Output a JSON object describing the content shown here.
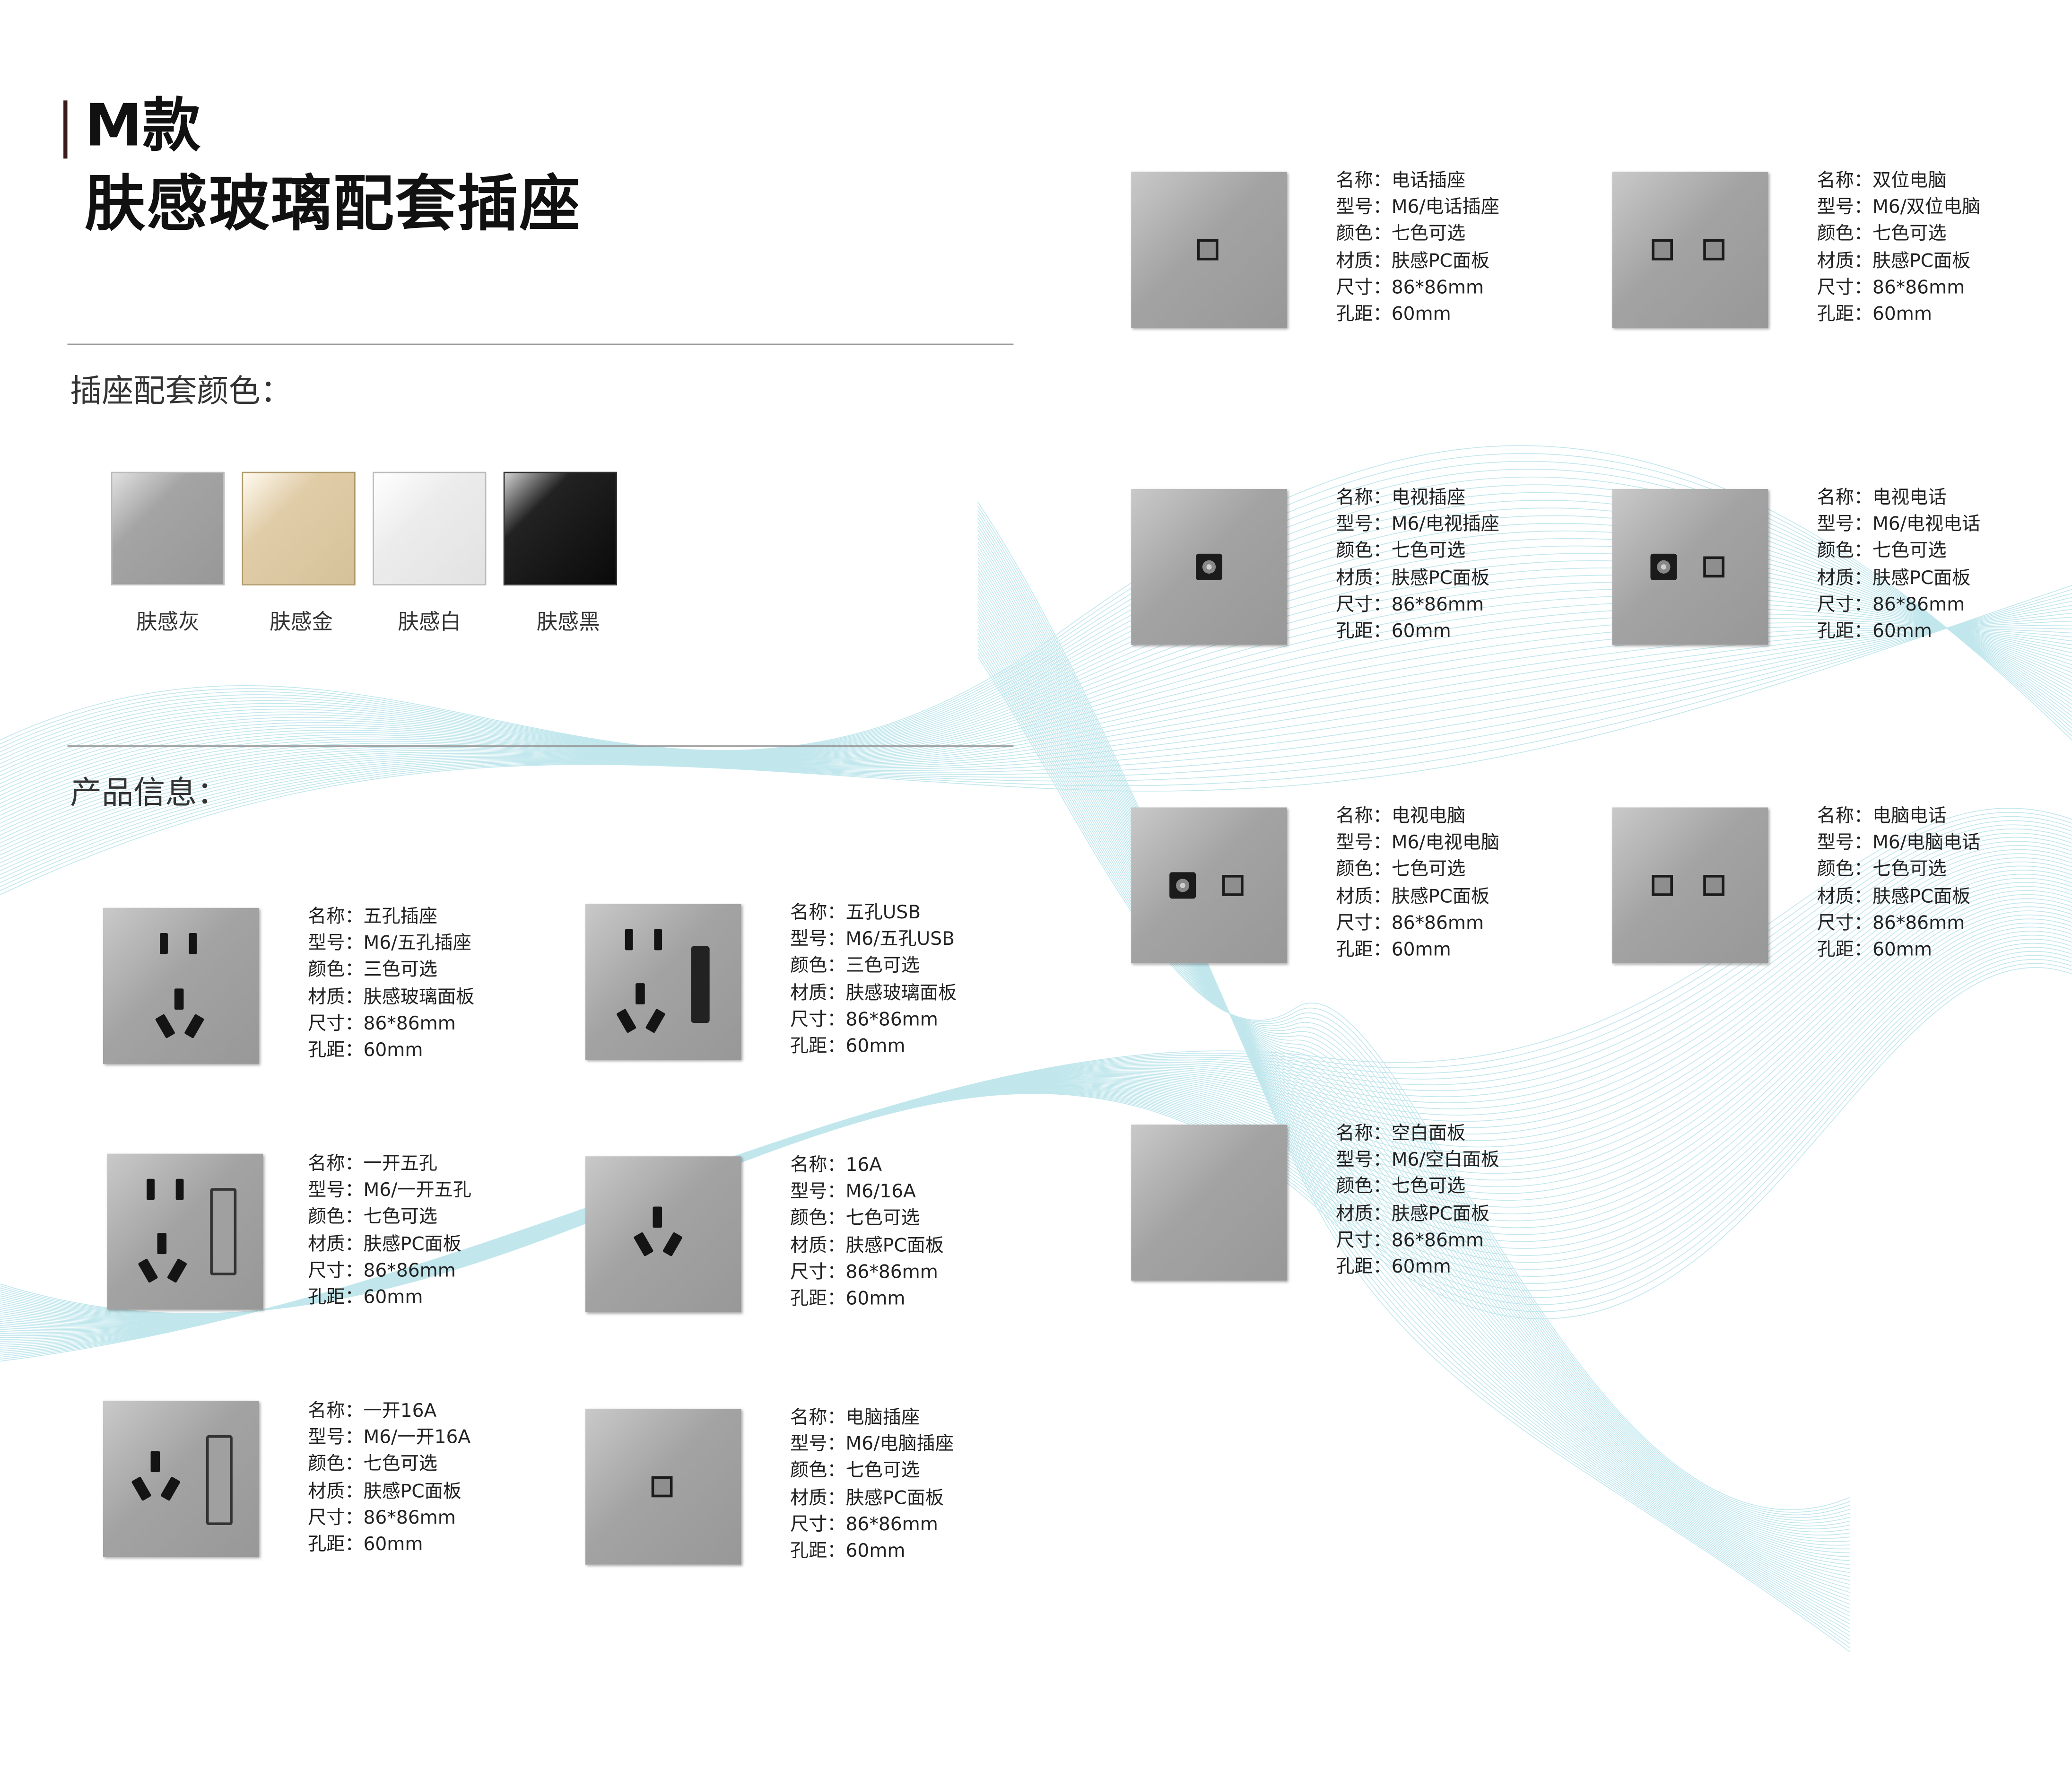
{
  "header": {
    "line1": "M款",
    "line2": "肤感玻璃配套插座"
  },
  "colors_section": {
    "heading": "插座配套颜色：",
    "swatches": [
      {
        "label": "肤感灰",
        "color": "#9a9a9a"
      },
      {
        "label": "肤感金",
        "color": "#d8c49c"
      },
      {
        "label": "肤感白",
        "color": "#e4e4e4"
      },
      {
        "label": "肤感黑",
        "color": "#0d0d0d"
      }
    ]
  },
  "products_section": {
    "heading": "产品信息："
  },
  "field_labels": {
    "name": "名称：",
    "model": "型号：",
    "color": "颜色：",
    "material": "材质：",
    "size": "尺寸：",
    "pitch": "孔距："
  },
  "products": [
    {
      "icon": "five-hole",
      "name": "五孔插座",
      "model": "M6/五孔插座",
      "color": "三色可选",
      "material": "肤感玻璃面板",
      "size": "86*86mm",
      "pitch": "60mm"
    },
    {
      "icon": "five-hole-usb",
      "name": "五孔USB",
      "model": "M6/五孔USB",
      "color": "三色可选",
      "material": "肤感玻璃面板",
      "size": "86*86mm",
      "pitch": "60mm"
    },
    {
      "icon": "switch-five-hole",
      "name": "一开五孔",
      "model": "M6/一开五孔",
      "color": "七色可选",
      "material": "肤感PC面板",
      "size": "86*86mm",
      "pitch": "60mm"
    },
    {
      "icon": "three-hole-16a",
      "name": "16A",
      "model": "M6/16A",
      "color": "七色可选",
      "material": "肤感PC面板",
      "size": "86*86mm",
      "pitch": "60mm"
    },
    {
      "icon": "switch-16a",
      "name": "一开16A",
      "model": "M6/一开16A",
      "color": "七色可选",
      "material": "肤感PC面板",
      "size": "86*86mm",
      "pitch": "60mm"
    },
    {
      "icon": "computer-port",
      "name": "电脑插座",
      "model": "M6/电脑插座",
      "color": "七色可选",
      "material": "肤感PC面板",
      "size": "86*86mm",
      "pitch": "60mm"
    },
    {
      "icon": "phone-port",
      "name": "电话插座",
      "model": "M6/电话插座",
      "color": "七色可选",
      "material": "肤感PC面板",
      "size": "86*86mm",
      "pitch": "60mm"
    },
    {
      "icon": "dual-computer-port",
      "name": "双位电脑",
      "model": "M6/双位电脑",
      "color": "七色可选",
      "material": "肤感PC面板",
      "size": "86*86mm",
      "pitch": "60mm"
    },
    {
      "icon": "tv-port",
      "name": "电视插座",
      "model": "M6/电视插座",
      "color": "七色可选",
      "material": "肤感PC面板",
      "size": "86*86mm",
      "pitch": "60mm"
    },
    {
      "icon": "tv-phone-port",
      "name": "电视电话",
      "model": "M6/电视电话",
      "color": "七色可选",
      "material": "肤感PC面板",
      "size": "86*86mm",
      "pitch": "60mm"
    },
    {
      "icon": "tv-computer-port",
      "name": "电视电脑",
      "model": "M6/电视电脑",
      "color": "七色可选",
      "material": "肤感PC面板",
      "size": "86*86mm",
      "pitch": "60mm"
    },
    {
      "icon": "computer-phone-port",
      "name": "电脑电话",
      "model": "M6/电脑电话",
      "color": "七色可选",
      "material": "肤感PC面板",
      "size": "86*86mm",
      "pitch": "60mm"
    },
    {
      "icon": "blank-panel",
      "name": "空白面板",
      "model": "M6/空白面板",
      "color": "七色可选",
      "material": "肤感PC面板",
      "size": "86*86mm",
      "pitch": "60mm"
    }
  ]
}
